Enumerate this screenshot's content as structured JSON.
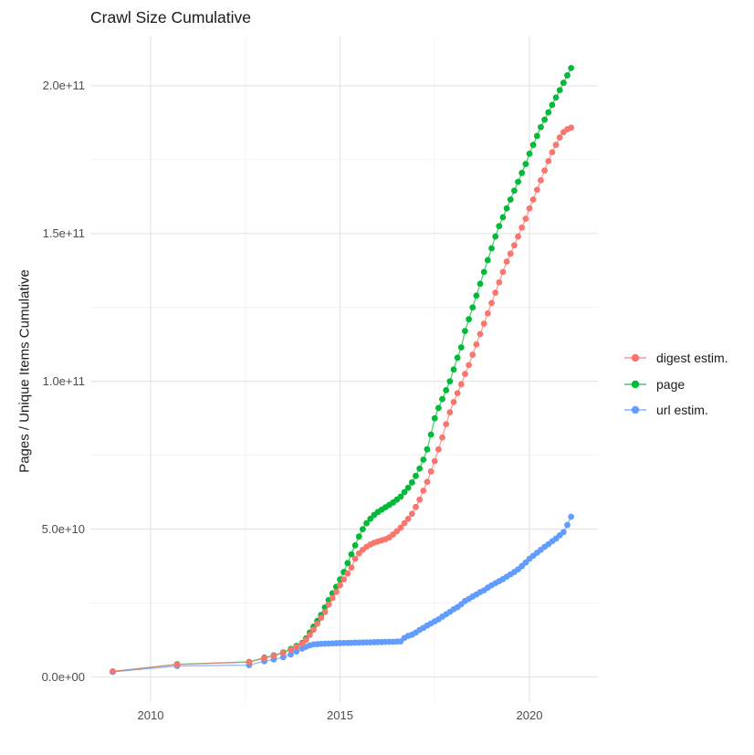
{
  "chart_data": {
    "type": "scatter",
    "title": "Crawl Size Cumulative",
    "xlabel": "",
    "ylabel": "Pages / Unique Items Cumulative",
    "legend_position": "right",
    "grid": "on",
    "values_unit": "1e9",
    "xlim": [
      2008.4,
      2021.8
    ],
    "ylim": [
      0,
      216000000000.0
    ],
    "x_axis": {
      "ticks": [
        {
          "value": 2010,
          "label": "2010"
        },
        {
          "value": 2015,
          "label": "2015"
        },
        {
          "value": 2020,
          "label": "2020"
        }
      ],
      "minor_ticks": [
        2012.5,
        2017.5
      ]
    },
    "y_axis": {
      "ticks": [
        {
          "value": 0,
          "label": "0.0e+00"
        },
        {
          "value": 50,
          "label": "5.0e+10"
        },
        {
          "value": 100,
          "label": "1.0e+11"
        },
        {
          "value": 150,
          "label": "1.5e+11"
        },
        {
          "value": 200,
          "label": "2.0e+11"
        }
      ],
      "minor_ticks": [
        25,
        75,
        125,
        175
      ]
    },
    "x": [
      2009.0,
      2010.7,
      2012.6,
      2013.0,
      2013.25,
      2013.5,
      2013.7,
      2013.85,
      2014.0,
      2014.1,
      2014.2,
      2014.3,
      2014.4,
      2014.5,
      2014.6,
      2014.7,
      2014.8,
      2014.9,
      2015.0,
      2015.1,
      2015.2,
      2015.3,
      2015.4,
      2015.5,
      2015.6,
      2015.7,
      2015.8,
      2015.9,
      2016.0,
      2016.1,
      2016.2,
      2016.3,
      2016.4,
      2016.5,
      2016.6,
      2016.7,
      2016.8,
      2016.9,
      2017.0,
      2017.1,
      2017.2,
      2017.3,
      2017.4,
      2017.5,
      2017.6,
      2017.7,
      2017.8,
      2017.9,
      2018.0,
      2018.1,
      2018.2,
      2018.3,
      2018.4,
      2018.5,
      2018.6,
      2018.7,
      2018.8,
      2018.9,
      2019.0,
      2019.1,
      2019.2,
      2019.3,
      2019.4,
      2019.5,
      2019.6,
      2019.7,
      2019.8,
      2019.9,
      2020.0,
      2020.1,
      2020.2,
      2020.3,
      2020.4,
      2020.5,
      2020.6,
      2020.7,
      2020.8,
      2020.9,
      2021.0,
      2021.1
    ],
    "series": [
      {
        "name": "page",
        "color": "#00BA38",
        "values": [
          1.8,
          4.3,
          5.1,
          6.5,
          7.3,
          8.3,
          9.5,
          10.5,
          11.5,
          13,
          15,
          17,
          19,
          21,
          23.5,
          26,
          28.3,
          30.5,
          33,
          35.5,
          38.5,
          41.5,
          44.5,
          47.5,
          50,
          52,
          53.5,
          54.8,
          55.8,
          56.6,
          57.4,
          58.2,
          59,
          60,
          61,
          62.5,
          64,
          65.8,
          68,
          70.5,
          73.5,
          77,
          82,
          87.5,
          91,
          94,
          97,
          100,
          104,
          108,
          111.5,
          117,
          121,
          125,
          129,
          133,
          137,
          141,
          145,
          149,
          152.5,
          155.5,
          158.5,
          161.5,
          164.5,
          167.5,
          170.5,
          173.5,
          177,
          180,
          183,
          186,
          188.5,
          191,
          193.5,
          196,
          198.5,
          201,
          203.5,
          206
        ]
      },
      {
        "name": "url estim.",
        "color": "#619CFF",
        "values": [
          1.7,
          3.7,
          4,
          5.3,
          5.9,
          6.7,
          7.6,
          8.6,
          9.6,
          10.2,
          10.7,
          11,
          11.1,
          11.2,
          11.25,
          11.3,
          11.35,
          11.4,
          11.45,
          11.5,
          11.5,
          11.55,
          11.6,
          11.6,
          11.65,
          11.7,
          11.7,
          11.75,
          11.8,
          11.8,
          11.85,
          11.9,
          11.9,
          11.95,
          12,
          13.2,
          13.9,
          14.3,
          15,
          15.9,
          16.6,
          17.4,
          18.1,
          18.8,
          19.5,
          20.4,
          21.2,
          22,
          22.9,
          23.6,
          24.6,
          25.7,
          26.4,
          27.2,
          27.9,
          28.7,
          29.3,
          30.2,
          31,
          31.7,
          32.4,
          33.1,
          33.9,
          34.7,
          35.5,
          36.4,
          37.5,
          38.7,
          40,
          41,
          42,
          43,
          44,
          44.9,
          45.9,
          46.8,
          47.9,
          49,
          51.4,
          54.2
        ]
      },
      {
        "name": "digest estim.",
        "color": "#F8766D",
        "values": [
          1.9,
          4.2,
          5,
          6.3,
          7.1,
          8.1,
          9.2,
          10.2,
          11.2,
          12.5,
          14.2,
          16,
          18,
          20,
          22,
          24.5,
          26.7,
          28.8,
          31,
          33,
          35,
          37,
          40,
          41.8,
          43,
          44,
          44.8,
          45.4,
          45.8,
          46.2,
          46.6,
          47.2,
          48.2,
          49.3,
          50.5,
          52,
          53.5,
          55.2,
          57.5,
          60,
          63,
          66,
          69.5,
          73,
          77,
          81,
          85.5,
          89.5,
          93,
          96,
          99,
          102.5,
          105.5,
          109,
          112.5,
          116,
          119.5,
          123,
          126.5,
          130,
          133.5,
          137,
          140.5,
          143.2,
          146,
          149,
          152,
          155,
          158.5,
          161.5,
          164.8,
          168,
          171.3,
          174.5,
          177.5,
          180,
          182.5,
          184.3,
          185.3,
          185.8
        ]
      }
    ],
    "legend_order": [
      "digest estim.",
      "page",
      "url estim."
    ]
  },
  "style": {
    "grid_major_color": "#e4e4e4",
    "grid_minor_color": "#f1f1f1",
    "background": "#ffffff"
  }
}
